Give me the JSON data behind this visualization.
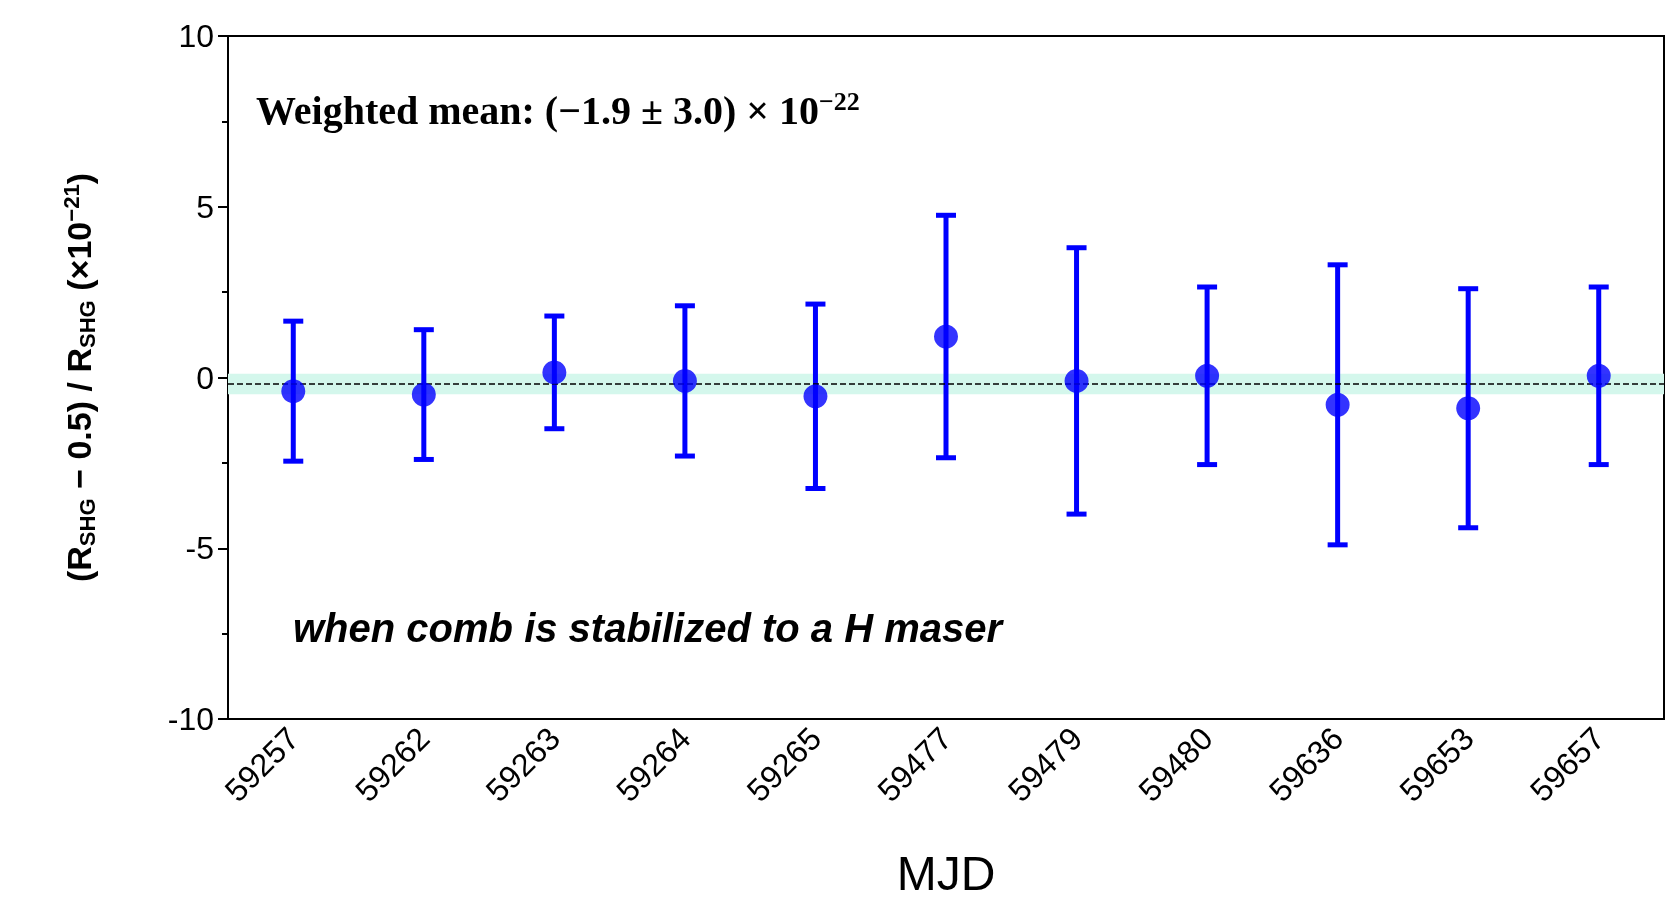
{
  "chart_data": {
    "type": "scatter",
    "xlabel": "MJD",
    "ylabel": "(R$_{SHG}$ − 0.5) / R$_{SHG}$ (×10$^{−21}$)",
    "annotations": [
      "Weighted mean: (−1.9 ± 3.0) × 10$^{−22}$",
      "when comb is stabilized to a H maser"
    ],
    "categories": [
      "59257",
      "59262",
      "59263",
      "59264",
      "59265",
      "59477",
      "59479",
      "59480",
      "59636",
      "59653",
      "59657"
    ],
    "series": [
      {
        "color": "#0000ff",
        "values": [
          -0.4,
          -0.5,
          0.15,
          -0.1,
          -0.55,
          1.2,
          -0.1,
          0.05,
          -0.8,
          -0.9,
          0.05
        ],
        "errors": [
          2.05,
          1.9,
          1.65,
          2.2,
          2.7,
          3.55,
          3.9,
          2.6,
          4.1,
          3.5,
          2.6
        ]
      }
    ],
    "ylim": [
      -10,
      10
    ],
    "yticks": [
      -10,
      -5,
      0,
      5,
      10
    ],
    "ref_lines": [
      {
        "axis": "y",
        "value": -0.19,
        "color": "#000000",
        "line_style": "dashed"
      }
    ],
    "bands": [
      {
        "axis": "y",
        "from": -0.49,
        "to": 0.11,
        "color": "#d4f7ec"
      }
    ],
    "marker": "circle",
    "grid": false
  }
}
